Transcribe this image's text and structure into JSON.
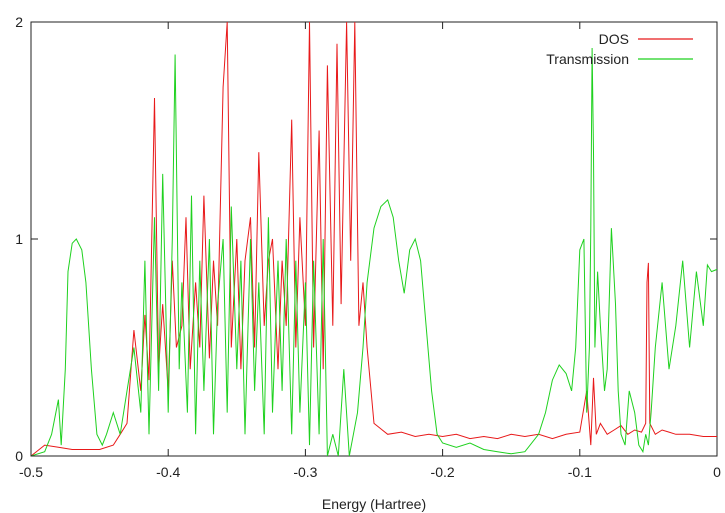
{
  "chart_data": {
    "type": "line",
    "xlabel": "Energy (Hartree)",
    "ylabel": "",
    "xlim": [
      -0.5,
      0
    ],
    "ylim": [
      0,
      2
    ],
    "x_ticks": [
      {
        "value": -0.5,
        "label": "-0.5"
      },
      {
        "value": -0.4,
        "label": "-0.4"
      },
      {
        "value": -0.3,
        "label": "-0.3"
      },
      {
        "value": -0.2,
        "label": "-0.2"
      },
      {
        "value": -0.1,
        "label": "-0.1"
      },
      {
        "value": 0,
        "label": "0"
      }
    ],
    "y_ticks": [
      {
        "value": 0,
        "label": "0"
      },
      {
        "value": 1,
        "label": "1"
      },
      {
        "value": 2,
        "label": "2"
      }
    ],
    "grid": false,
    "legend_position": "top-right",
    "series": [
      {
        "name": "DOS",
        "color": "#e8191a",
        "x": [
          -0.5,
          -0.49,
          -0.48,
          -0.47,
          -0.46,
          -0.45,
          -0.44,
          -0.435,
          -0.43,
          -0.425,
          -0.42,
          -0.417,
          -0.414,
          -0.41,
          -0.407,
          -0.404,
          -0.4,
          -0.397,
          -0.394,
          -0.39,
          -0.387,
          -0.384,
          -0.38,
          -0.377,
          -0.374,
          -0.37,
          -0.367,
          -0.364,
          -0.36,
          -0.357,
          -0.354,
          -0.35,
          -0.347,
          -0.344,
          -0.34,
          -0.337,
          -0.334,
          -0.33,
          -0.327,
          -0.324,
          -0.32,
          -0.317,
          -0.314,
          -0.31,
          -0.307,
          -0.304,
          -0.3,
          -0.297,
          -0.294,
          -0.29,
          -0.287,
          -0.284,
          -0.28,
          -0.277,
          -0.274,
          -0.27,
          -0.267,
          -0.264,
          -0.261,
          -0.258,
          -0.255,
          -0.25,
          -0.24,
          -0.23,
          -0.22,
          -0.21,
          -0.2,
          -0.19,
          -0.18,
          -0.17,
          -0.16,
          -0.15,
          -0.14,
          -0.13,
          -0.12,
          -0.11,
          -0.1,
          -0.095,
          -0.092,
          -0.09,
          -0.088,
          -0.085,
          -0.08,
          -0.075,
          -0.07,
          -0.065,
          -0.06,
          -0.055,
          -0.052,
          -0.051,
          -0.05,
          -0.049,
          -0.045,
          -0.04,
          -0.035,
          -0.03,
          -0.02,
          -0.01,
          0
        ],
        "values": [
          0.0,
          0.05,
          0.04,
          0.03,
          0.03,
          0.03,
          0.05,
          0.1,
          0.15,
          0.58,
          0.3,
          0.65,
          0.35,
          1.65,
          0.4,
          0.7,
          0.3,
          0.9,
          0.5,
          0.6,
          1.1,
          0.4,
          0.8,
          0.5,
          1.2,
          0.45,
          0.9,
          0.6,
          1.7,
          2.0,
          0.5,
          1.0,
          0.4,
          0.9,
          1.1,
          0.5,
          1.4,
          0.6,
          0.9,
          1.0,
          0.4,
          0.9,
          0.6,
          1.55,
          0.5,
          1.1,
          0.6,
          2.0,
          0.5,
          1.5,
          0.4,
          1.8,
          0.6,
          1.9,
          0.7,
          2.0,
          0.9,
          2.0,
          0.6,
          0.8,
          0.5,
          0.15,
          0.1,
          0.11,
          0.09,
          0.1,
          0.09,
          0.1,
          0.08,
          0.09,
          0.08,
          0.1,
          0.09,
          0.1,
          0.08,
          0.1,
          0.11,
          0.3,
          0.05,
          0.36,
          0.1,
          0.15,
          0.1,
          0.12,
          0.14,
          0.1,
          0.12,
          0.11,
          0.15,
          0.8,
          0.89,
          0.15,
          0.1,
          0.12,
          0.11,
          0.1,
          0.1,
          0.09,
          0.09
        ]
      },
      {
        "name": "Transmission",
        "color": "#1fd11f",
        "x": [
          -0.5,
          -0.49,
          -0.485,
          -0.48,
          -0.478,
          -0.475,
          -0.473,
          -0.47,
          -0.467,
          -0.463,
          -0.46,
          -0.456,
          -0.452,
          -0.448,
          -0.445,
          -0.44,
          -0.435,
          -0.43,
          -0.425,
          -0.42,
          -0.417,
          -0.414,
          -0.41,
          -0.407,
          -0.404,
          -0.4,
          -0.397,
          -0.395,
          -0.392,
          -0.39,
          -0.386,
          -0.383,
          -0.38,
          -0.377,
          -0.374,
          -0.37,
          -0.367,
          -0.364,
          -0.36,
          -0.357,
          -0.354,
          -0.35,
          -0.347,
          -0.344,
          -0.34,
          -0.337,
          -0.334,
          -0.33,
          -0.327,
          -0.324,
          -0.32,
          -0.317,
          -0.314,
          -0.31,
          -0.307,
          -0.304,
          -0.3,
          -0.297,
          -0.294,
          -0.29,
          -0.287,
          -0.284,
          -0.28,
          -0.276,
          -0.272,
          -0.268,
          -0.265,
          -0.262,
          -0.258,
          -0.255,
          -0.25,
          -0.245,
          -0.24,
          -0.236,
          -0.232,
          -0.228,
          -0.224,
          -0.22,
          -0.216,
          -0.212,
          -0.208,
          -0.204,
          -0.2,
          -0.19,
          -0.18,
          -0.17,
          -0.16,
          -0.15,
          -0.14,
          -0.13,
          -0.125,
          -0.12,
          -0.115,
          -0.11,
          -0.106,
          -0.103,
          -0.1,
          -0.097,
          -0.095,
          -0.093,
          -0.092,
          -0.091,
          -0.09,
          -0.089,
          -0.087,
          -0.085,
          -0.082,
          -0.08,
          -0.077,
          -0.074,
          -0.072,
          -0.07,
          -0.067,
          -0.064,
          -0.06,
          -0.057,
          -0.054,
          -0.052,
          -0.05,
          -0.048,
          -0.045,
          -0.04,
          -0.035,
          -0.03,
          -0.025,
          -0.02,
          -0.015,
          -0.01,
          -0.007,
          -0.004,
          0
        ],
        "values": [
          0.0,
          0.02,
          0.1,
          0.26,
          0.05,
          0.4,
          0.85,
          0.98,
          1.0,
          0.95,
          0.8,
          0.4,
          0.1,
          0.05,
          0.1,
          0.2,
          0.1,
          0.3,
          0.5,
          0.2,
          0.9,
          0.1,
          1.1,
          0.3,
          1.3,
          0.2,
          1.0,
          1.85,
          0.4,
          0.8,
          0.2,
          1.2,
          0.1,
          0.9,
          0.3,
          1.0,
          0.1,
          0.7,
          1.0,
          0.2,
          1.15,
          0.4,
          0.9,
          0.1,
          1.0,
          0.3,
          0.8,
          0.1,
          1.1,
          0.2,
          0.9,
          0.3,
          1.0,
          0.1,
          0.9,
          0.2,
          0.8,
          0.05,
          0.9,
          0.1,
          1.0,
          0.0,
          0.1,
          0.0,
          0.4,
          0.0,
          0.1,
          0.2,
          0.5,
          0.8,
          1.05,
          1.15,
          1.18,
          1.1,
          0.9,
          0.75,
          0.95,
          1.0,
          0.9,
          0.6,
          0.3,
          0.1,
          0.06,
          0.04,
          0.06,
          0.03,
          0.02,
          0.01,
          0.02,
          0.1,
          0.2,
          0.35,
          0.42,
          0.38,
          0.3,
          0.5,
          0.95,
          1.0,
          0.2,
          0.5,
          1.05,
          1.88,
          1.4,
          0.5,
          0.85,
          0.6,
          0.3,
          0.4,
          1.05,
          0.7,
          0.3,
          0.1,
          0.05,
          0.3,
          0.2,
          0.05,
          0.02,
          0.1,
          0.05,
          0.2,
          0.5,
          0.8,
          0.4,
          0.6,
          0.9,
          0.5,
          0.85,
          0.6,
          0.88,
          0.85,
          0.86
        ]
      }
    ]
  }
}
